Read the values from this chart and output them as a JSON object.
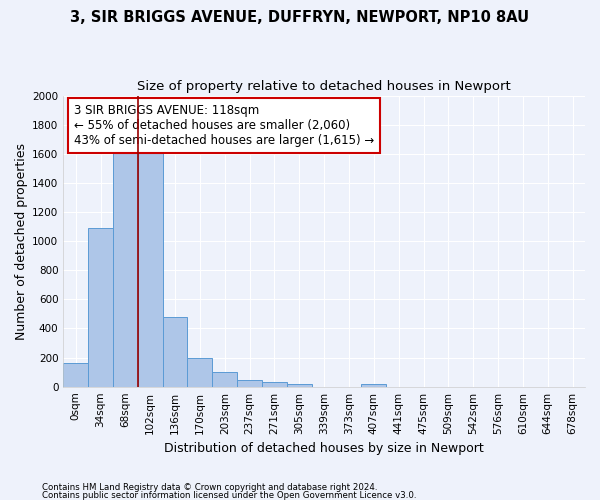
{
  "title1": "3, SIR BRIGGS AVENUE, DUFFRYN, NEWPORT, NP10 8AU",
  "title2": "Size of property relative to detached houses in Newport",
  "xlabel": "Distribution of detached houses by size in Newport",
  "ylabel": "Number of detached properties",
  "footnote1": "Contains HM Land Registry data © Crown copyright and database right 2024.",
  "footnote2": "Contains public sector information licensed under the Open Government Licence v3.0.",
  "categories": [
    "0sqm",
    "34sqm",
    "68sqm",
    "102sqm",
    "136sqm",
    "170sqm",
    "203sqm",
    "237sqm",
    "271sqm",
    "305sqm",
    "339sqm",
    "373sqm",
    "407sqm",
    "441sqm",
    "475sqm",
    "509sqm",
    "542sqm",
    "576sqm",
    "610sqm",
    "644sqm",
    "678sqm"
  ],
  "values": [
    165,
    1090,
    1625,
    1625,
    480,
    200,
    100,
    45,
    30,
    18,
    0,
    0,
    18,
    0,
    0,
    0,
    0,
    0,
    0,
    0,
    0
  ],
  "bar_color": "#aec6e8",
  "bar_edge_color": "#5b9bd5",
  "vline_x": 2.5,
  "vline_color": "#990000",
  "annotation_line1": "3 SIR BRIGGS AVENUE: 118sqm",
  "annotation_line2": "← 55% of detached houses are smaller (2,060)",
  "annotation_line3": "43% of semi-detached houses are larger (1,615) →",
  "annotation_box_color": "#ffffff",
  "annotation_box_edge": "#cc0000",
  "ylim": [
    0,
    2000
  ],
  "yticks": [
    0,
    200,
    400,
    600,
    800,
    1000,
    1200,
    1400,
    1600,
    1800,
    2000
  ],
  "background_color": "#eef2fb",
  "grid_color": "#ffffff",
  "title_fontsize": 10.5,
  "subtitle_fontsize": 9.5,
  "ylabel_fontsize": 9,
  "xlabel_fontsize": 9,
  "tick_fontsize": 7.5,
  "annot_fontsize": 8.5
}
